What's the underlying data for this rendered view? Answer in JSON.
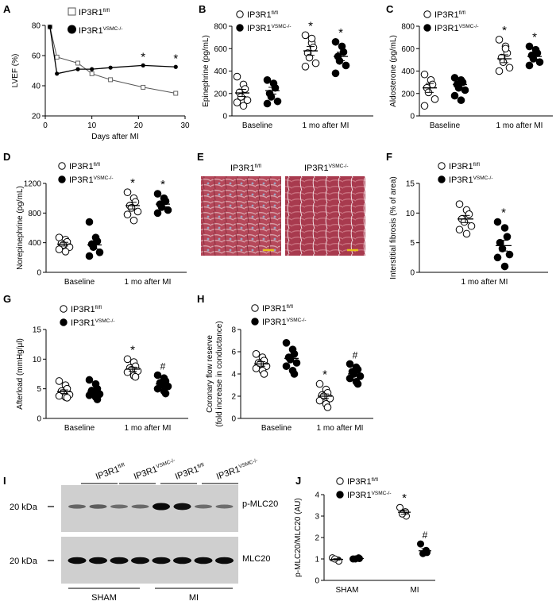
{
  "legend": {
    "fl_base": "IP3R1",
    "fl_sup": "fl/fl",
    "ko_base": "IP3R1",
    "ko_sup": "VSMC-/-"
  },
  "markers": {
    "star": "*",
    "hash": "#"
  },
  "colors": {
    "open_fill": "#ffffff",
    "closed_fill": "#000000",
    "stroke": "#000000",
    "scale_bar": "#e6c21a"
  },
  "panels": {
    "A": {
      "letter": "A"
    },
    "B": {
      "letter": "B"
    },
    "C": {
      "letter": "C"
    },
    "D": {
      "letter": "D"
    },
    "E": {
      "letter": "E",
      "col1": "IP3R1",
      "col1_sup": "fl/fl",
      "col2": "IP3R1",
      "col2_sup": "VSMC-/-"
    },
    "F": {
      "letter": "F"
    },
    "G": {
      "letter": "G"
    },
    "H": {
      "letter": "H"
    },
    "I": {
      "letter": "I",
      "lane_fl": "IP3R1",
      "lane_fl_sup": "fl/fl",
      "lane_ko": "IP3R1",
      "lane_ko_sup": "VSMC-/-",
      "kda_top": "20 kDa",
      "kda_bottom": "20 kDa",
      "band_top": "p-MLC20",
      "band_bottom": "MLC20",
      "group_sham": "SHAM",
      "group_mi": "MI"
    },
    "J": {
      "letter": "J"
    }
  },
  "chart_data": [
    {
      "panel": "A",
      "type": "line",
      "xlabel": "Days after MI",
      "ylabel": "LVEF (%)",
      "xlim": [
        0,
        30
      ],
      "ylim": [
        20,
        80
      ],
      "xticks": [
        "0",
        "10",
        "20",
        "30"
      ],
      "yticks": [
        "20",
        "40",
        "60",
        "80"
      ],
      "legend_position": "top",
      "series": [
        {
          "name": "IP3R1fl/fl",
          "marker": "open-square",
          "x": [
            1,
            2.5,
            7,
            10,
            14,
            21,
            28
          ],
          "y": [
            79,
            59,
            55,
            48,
            44,
            39,
            35
          ]
        },
        {
          "name": "IP3R1VSMC-/-",
          "marker": "filled-circle",
          "x": [
            1,
            2.5,
            7,
            10,
            14,
            21,
            28
          ],
          "y": [
            79,
            48,
            51,
            51,
            52,
            53.5,
            52.5
          ],
          "annotations": [
            {
              "x": 21,
              "label": "*"
            },
            {
              "x": 28,
              "label": "*"
            }
          ]
        }
      ]
    },
    {
      "panel": "B",
      "type": "scatter",
      "ylabel": "Epinephrine (pg/mL)",
      "ylim": [
        0,
        800
      ],
      "yticks": [
        "0",
        "200",
        "400",
        "600",
        "800"
      ],
      "categories": [
        "Baseline",
        "1 mo after MI"
      ],
      "series": [
        {
          "name": "IP3R1fl/fl",
          "groups": [
            {
              "values": [
                350,
                280,
                240,
                210,
                170,
                140,
                120,
                90
              ],
              "mean": 205,
              "sem": 32
            },
            {
              "values": [
                720,
                650,
                610,
                560,
                520,
                470,
                440,
                690
              ],
              "mean": 580,
              "sem": 40,
              "annotation": "*"
            }
          ]
        },
        {
          "name": "IP3R1VSMC-/-",
          "groups": [
            {
              "values": [
                320,
                290,
                250,
                200,
                170,
                130,
                110
              ],
              "mean": 225,
              "sem": 30
            },
            {
              "values": [
                660,
                620,
                570,
                530,
                490,
                450,
                380
              ],
              "mean": 530,
              "sem": 38,
              "annotation": "*"
            }
          ]
        }
      ]
    },
    {
      "panel": "C",
      "type": "scatter",
      "ylabel": "Aldosterone (pg/mL)",
      "ylim": [
        0,
        800
      ],
      "yticks": [
        "0",
        "200",
        "400",
        "600",
        "800"
      ],
      "categories": [
        "Baseline",
        "1 mo after MI"
      ],
      "series": [
        {
          "name": "IP3R1fl/fl",
          "groups": [
            {
              "values": [
                370,
                320,
                280,
                250,
                210,
                150,
                90
              ],
              "mean": 250,
              "sem": 40
            },
            {
              "values": [
                680,
                620,
                560,
                520,
                480,
                430,
                400,
                600
              ],
              "mean": 510,
              "sem": 35,
              "annotation": "*"
            }
          ]
        },
        {
          "name": "IP3R1VSMC-/-",
          "groups": [
            {
              "values": [
                340,
                320,
                300,
                280,
                250,
                230,
                180,
                140
              ],
              "mean": 280,
              "sem": 25
            },
            {
              "values": [
                620,
                590,
                560,
                540,
                510,
                480,
                450
              ],
              "mean": 530,
              "sem": 25,
              "annotation": "*"
            }
          ]
        }
      ]
    },
    {
      "panel": "D",
      "type": "scatter",
      "ylabel": "Norepinephrine (pg/mL)",
      "ylim": [
        0,
        1200
      ],
      "yticks": [
        "0",
        "400",
        "800",
        "1200"
      ],
      "categories": [
        "Baseline",
        "1 mo after MI"
      ],
      "series": [
        {
          "name": "IP3R1fl/fl",
          "groups": [
            {
              "values": [
                470,
                440,
                410,
                390,
                370,
                340,
                310,
                280
              ],
              "mean": 380,
              "sem": 25
            },
            {
              "values": [
                1080,
                1000,
                950,
                900,
                870,
                820,
                780,
                700
              ],
              "mean": 900,
              "sem": 45,
              "annotation": "*"
            }
          ]
        },
        {
          "name": "IP3R1VSMC-/-",
          "groups": [
            {
              "values": [
                680,
                470,
                420,
                380,
                340,
                270,
                220
              ],
              "mean": 370,
              "sem": 55
            },
            {
              "values": [
                1060,
                1000,
                960,
                920,
                880,
                840,
                800
              ],
              "mean": 920,
              "sem": 35,
              "annotation": "*"
            }
          ]
        }
      ]
    },
    {
      "panel": "F",
      "type": "scatter",
      "ylabel": "Interstitial fibrosis (% of area)",
      "ylim": [
        0,
        15
      ],
      "yticks": [
        "0",
        "5",
        "10",
        "15"
      ],
      "categories": [
        "1 mo after MI"
      ],
      "series": [
        {
          "name": "IP3R1fl/fl",
          "groups": [
            {
              "values": [
                11.5,
                10.5,
                9.8,
                9.0,
                8.5,
                7.8,
                7.2,
                6.5
              ],
              "mean": 9.0,
              "sem": 0.6
            }
          ]
        },
        {
          "name": "IP3R1VSMC-/-",
          "groups": [
            {
              "values": [
                8.5,
                7.5,
                6.0,
                5.0,
                4.0,
                3.0,
                2.5,
                1.0
              ],
              "mean": 4.5,
              "sem": 0.9,
              "annotation": "*"
            }
          ]
        }
      ]
    },
    {
      "panel": "G",
      "type": "scatter",
      "ylabel": "Afterload (mmHg/μl)",
      "ylim": [
        0,
        15
      ],
      "yticks": [
        "0",
        "5",
        "10",
        "15"
      ],
      "categories": [
        "Baseline",
        "1 mo after MI"
      ],
      "series": [
        {
          "name": "IP3R1fl/fl",
          "groups": [
            {
              "values": [
                6.3,
                5.6,
                5.0,
                4.6,
                4.3,
                4.0,
                3.8,
                3.6,
                3.5
              ],
              "mean": 4.5,
              "sem": 0.3
            },
            {
              "values": [
                10.0,
                9.5,
                8.8,
                8.5,
                8.2,
                8.0,
                7.8,
                7.2,
                7.0
              ],
              "mean": 8.3,
              "sem": 0.35,
              "annotation": "*"
            }
          ]
        },
        {
          "name": "IP3R1VSMC-/-",
          "groups": [
            {
              "values": [
                6.5,
                5.8,
                5.0,
                4.7,
                4.4,
                4.1,
                3.9,
                3.6,
                3.2
              ],
              "mean": 4.6,
              "sem": 0.35
            },
            {
              "values": [
                7.3,
                6.8,
                6.3,
                6.0,
                5.7,
                5.4,
                5.0,
                4.6,
                4.2
              ],
              "mean": 5.8,
              "sem": 0.35,
              "annotation": "#"
            }
          ]
        }
      ]
    },
    {
      "panel": "H",
      "type": "scatter",
      "ylabel": "Coronary flow reserve\n(fold increase in conductance)",
      "ylim": [
        0,
        8
      ],
      "yticks": [
        "0",
        "2",
        "4",
        "6",
        "8"
      ],
      "categories": [
        "Baseline",
        "1 mo after MI"
      ],
      "series": [
        {
          "name": "IP3R1fl/fl",
          "groups": [
            {
              "values": [
                5.8,
                5.5,
                5.2,
                5.0,
                4.9,
                4.7,
                4.5,
                4.3,
                4.0
              ],
              "mean": 4.9,
              "sem": 0.2
            },
            {
              "values": [
                3.1,
                2.6,
                2.3,
                2.1,
                2.0,
                1.8,
                1.6,
                1.3,
                1.0
              ],
              "mean": 2.0,
              "sem": 0.2,
              "annotation": "*"
            }
          ]
        },
        {
          "name": "IP3R1VSMC-/-",
          "groups": [
            {
              "values": [
                6.8,
                6.2,
                5.8,
                5.5,
                5.3,
                5.0,
                4.7,
                4.3,
                4.0
              ],
              "mean": 5.4,
              "sem": 0.3
            },
            {
              "values": [
                4.9,
                4.6,
                4.4,
                4.2,
                4.0,
                3.8,
                3.6,
                3.3,
                3.1
              ],
              "mean": 4.0,
              "sem": 0.2,
              "annotation": "#"
            }
          ]
        }
      ]
    },
    {
      "panel": "J",
      "type": "scatter",
      "ylabel": "p-MLC20/MLC20 (AU)",
      "ylim": [
        0,
        4
      ],
      "yticks": [
        "0",
        "1",
        "2",
        "3",
        "4"
      ],
      "categories": [
        "SHAM",
        "MI"
      ],
      "series": [
        {
          "name": "IP3R1fl/fl",
          "groups": [
            {
              "values": [
                1.05,
                0.95,
                0.9,
                1.0
              ],
              "mean": 0.98,
              "sem": 0.03
            },
            {
              "values": [
                3.4,
                3.2,
                3.0,
                3.1
              ],
              "mean": 3.18,
              "sem": 0.1,
              "annotation": "*"
            }
          ]
        },
        {
          "name": "IP3R1VSMC-/-",
          "groups": [
            {
              "values": [
                1.0,
                1.05,
                1.02,
                1.0
              ],
              "mean": 1.02,
              "sem": 0.02
            },
            {
              "values": [
                1.7,
                1.4,
                1.3,
                1.25
              ],
              "mean": 1.38,
              "sem": 0.1,
              "annotation": "#"
            }
          ]
        }
      ]
    }
  ],
  "blot": {
    "lanes": [
      "fl_sham",
      "fl_sham",
      "ko_sham",
      "ko_sham",
      "fl_mi",
      "fl_mi",
      "ko_mi",
      "ko_mi"
    ],
    "p_mlc20_intensity": [
      0.35,
      0.4,
      0.3,
      0.32,
      0.95,
      0.9,
      0.3,
      0.3
    ],
    "mlc20_intensity": [
      0.95,
      0.95,
      0.95,
      0.95,
      0.95,
      0.95,
      0.95,
      0.95
    ]
  }
}
